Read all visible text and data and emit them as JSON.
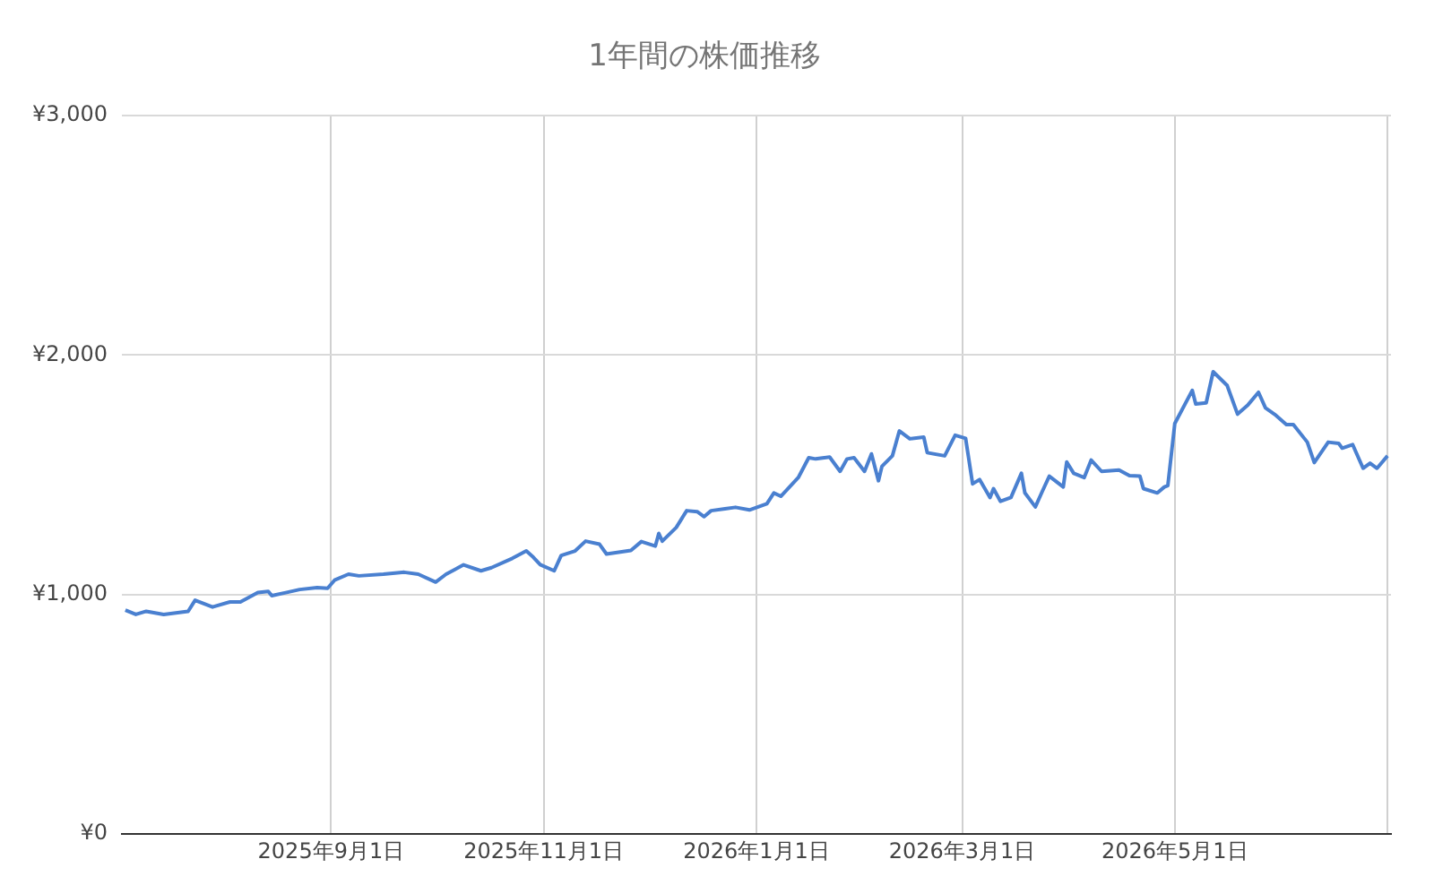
{
  "chart_data": {
    "type": "line",
    "title": "1年間の株価推移",
    "x": [
      "2025-07-04",
      "2025-07-07",
      "2025-07-10",
      "2025-07-15",
      "2025-07-22",
      "2025-07-24",
      "2025-07-29",
      "2025-08-03",
      "2025-08-06",
      "2025-08-11",
      "2025-08-14",
      "2025-08-15",
      "2025-08-19",
      "2025-08-23",
      "2025-08-28",
      "2025-08-31",
      "2025-09-02",
      "2025-09-06",
      "2025-09-09",
      "2025-09-16",
      "2025-09-22",
      "2025-09-26",
      "2025-10-01",
      "2025-10-04",
      "2025-10-09",
      "2025-10-14",
      "2025-10-17",
      "2025-10-23",
      "2025-10-27",
      "2025-10-29",
      "2025-10-31",
      "2025-11-04",
      "2025-11-06",
      "2025-11-10",
      "2025-11-13",
      "2025-11-17",
      "2025-11-19",
      "2025-11-26",
      "2025-11-29",
      "2025-12-03",
      "2025-12-04",
      "2025-12-05",
      "2025-12-09",
      "2025-12-12",
      "2025-12-15",
      "2025-12-17",
      "2025-12-19",
      "2025-12-23",
      "2025-12-26",
      "2025-12-30",
      "2026-01-04",
      "2026-01-06",
      "2026-01-08",
      "2026-01-13",
      "2026-01-16",
      "2026-01-18",
      "2026-01-22",
      "2026-01-25",
      "2026-01-27",
      "2026-01-29",
      "2026-02-01",
      "2026-02-03",
      "2026-02-05",
      "2026-02-06",
      "2026-02-09",
      "2026-02-11",
      "2026-02-14",
      "2026-02-18",
      "2026-02-19",
      "2026-02-24",
      "2026-02-27",
      "2026-03-02",
      "2026-03-04",
      "2026-03-06",
      "2026-03-09",
      "2026-03-10",
      "2026-03-12",
      "2026-03-15",
      "2026-03-18",
      "2026-03-19",
      "2026-03-22",
      "2026-03-24",
      "2026-03-26",
      "2026-03-30",
      "2026-03-31",
      "2026-04-02",
      "2026-04-05",
      "2026-04-07",
      "2026-04-10",
      "2026-04-15",
      "2026-04-18",
      "2026-04-21",
      "2026-04-22",
      "2026-04-26",
      "2026-04-28",
      "2026-04-29",
      "2026-05-01",
      "2026-05-06",
      "2026-05-07",
      "2026-05-10",
      "2026-05-12",
      "2026-05-16",
      "2026-05-19",
      "2026-05-22",
      "2026-05-25",
      "2026-05-27",
      "2026-05-30",
      "2026-06-02",
      "2026-06-04",
      "2026-06-08",
      "2026-06-10",
      "2026-06-14",
      "2026-06-17",
      "2026-06-18",
      "2026-06-21",
      "2026-06-24",
      "2026-06-26",
      "2026-06-28",
      "2026-07-01"
    ],
    "series": [
      {
        "color": "#4a80d0",
        "values": [
          935,
          917,
          930,
          917,
          930,
          976,
          948,
          969,
          969,
          1008,
          1013,
          995,
          1008,
          1021,
          1029,
          1026,
          1060,
          1085,
          1078,
          1085,
          1093,
          1085,
          1052,
          1085,
          1124,
          1099,
          1112,
          1151,
          1182,
          1156,
          1125,
          1099,
          1163,
          1182,
          1223,
          1210,
          1169,
          1184,
          1221,
          1202,
          1255,
          1223,
          1280,
          1350,
          1346,
          1325,
          1350,
          1358,
          1364,
          1353,
          1379,
          1424,
          1410,
          1488,
          1571,
          1566,
          1574,
          1514,
          1566,
          1571,
          1514,
          1587,
          1475,
          1535,
          1579,
          1683,
          1650,
          1657,
          1592,
          1579,
          1665,
          1652,
          1462,
          1480,
          1405,
          1442,
          1389,
          1405,
          1506,
          1424,
          1366,
          1431,
          1494,
          1449,
          1553,
          1506,
          1488,
          1561,
          1514,
          1520,
          1496,
          1494,
          1442,
          1424,
          1449,
          1455,
          1714,
          1852,
          1795,
          1800,
          1930,
          1873,
          1753,
          1792,
          1844,
          1779,
          1748,
          1709,
          1709,
          1636,
          1551,
          1636,
          1631,
          1611,
          1626,
          1527,
          1548,
          1527,
          1579
        ]
      }
    ],
    "xlim": [
      "2025-07-03",
      "2026-07-02"
    ],
    "xticks": [
      {
        "value": "2025-09-01",
        "label": "2025年9月1日"
      },
      {
        "value": "2025-11-01",
        "label": "2025年11月1日"
      },
      {
        "value": "2026-01-01",
        "label": "2026年1月1日"
      },
      {
        "value": "2026-03-01",
        "label": "2026年3月1日"
      },
      {
        "value": "2026-05-01",
        "label": "2026年5月1日"
      },
      {
        "value": "2026-07-01",
        "label": null
      }
    ],
    "ylim": [
      0,
      3000
    ],
    "yticks": [
      {
        "value": 0,
        "label": "¥0"
      },
      {
        "value": 1000,
        "label": "¥1,000"
      },
      {
        "value": 2000,
        "label": "¥2,000"
      },
      {
        "value": 3000,
        "label": "¥3,000"
      }
    ],
    "grid": true,
    "marker": "none",
    "line_style": "solid",
    "legend": false
  }
}
